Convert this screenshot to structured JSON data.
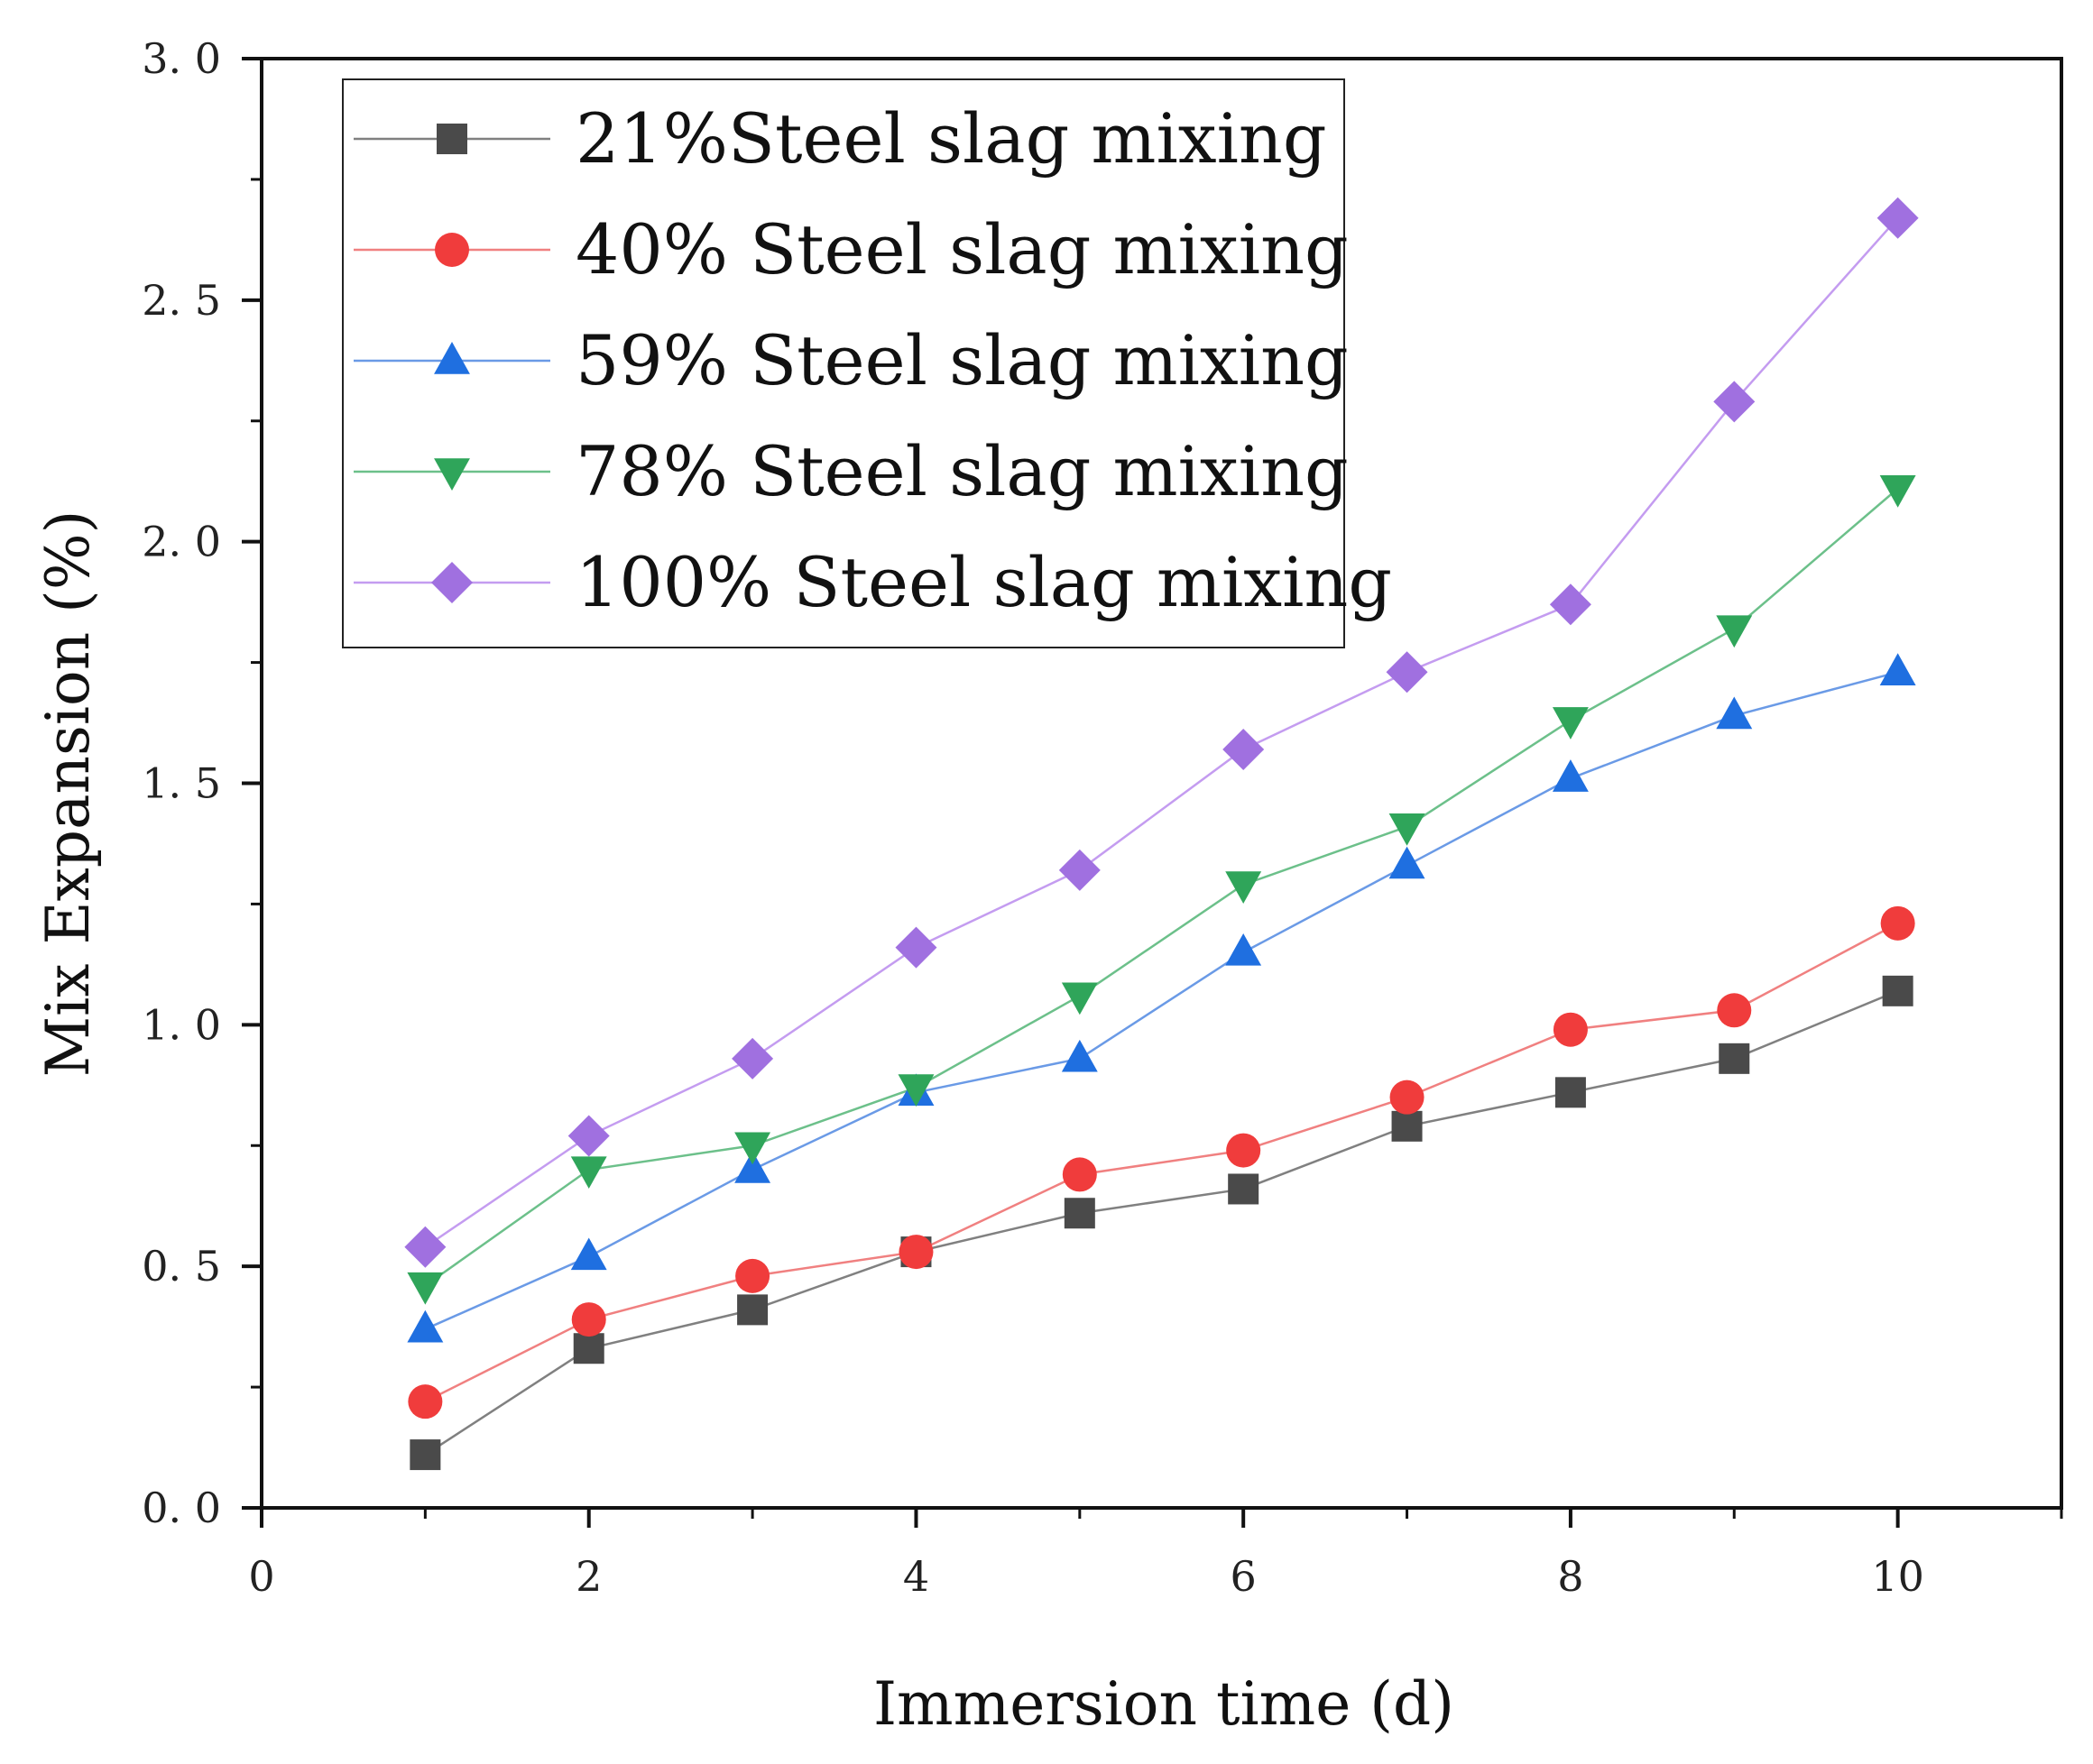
{
  "chart_data": {
    "type": "line",
    "title": "",
    "xlabel": "Immersion time (d)",
    "ylabel": "Mix Expansion (%)",
    "xlim": [
      0,
      11
    ],
    "ylim": [
      0,
      3.0
    ],
    "x_ticks": [
      0,
      2,
      4,
      6,
      8,
      10
    ],
    "x_tick_labels": [
      "0",
      "2",
      "4",
      "6",
      "8",
      "10"
    ],
    "y_ticks": [
      0,
      0.5,
      1.0,
      1.5,
      2.0,
      2.5,
      3.0
    ],
    "y_tick_labels": [
      "0. 0",
      "0. 5",
      "1. 0",
      "1. 5",
      "2. 0",
      "2. 5",
      "3. 0"
    ],
    "grid": false,
    "legend_position": "top-left",
    "x": [
      1,
      2,
      3,
      4,
      5,
      6,
      7,
      8,
      9,
      10
    ],
    "series": [
      {
        "name": "21%Steel slag mixing",
        "marker": "square",
        "line_color": "#808080",
        "marker_color": "#4a4a4a",
        "values": [
          0.11,
          0.33,
          0.41,
          0.53,
          0.61,
          0.66,
          0.79,
          0.86,
          0.93,
          1.07
        ]
      },
      {
        "name": "40% Steel slag mixing",
        "marker": "circle",
        "line_color": "#f08080",
        "marker_color": "#f03c3c",
        "values": [
          0.22,
          0.39,
          0.48,
          0.53,
          0.69,
          0.74,
          0.85,
          0.99,
          1.03,
          1.21
        ]
      },
      {
        "name": "59% Steel slag mixing",
        "marker": "triangle-up",
        "line_color": "#6a9ae6",
        "marker_color": "#1f6fe0",
        "values": [
          0.37,
          0.52,
          0.7,
          0.86,
          0.93,
          1.15,
          1.33,
          1.51,
          1.64,
          1.73
        ]
      },
      {
        "name": "78% Steel slag mixing",
        "marker": "triangle-down",
        "line_color": "#6cc08a",
        "marker_color": "#2fa55a",
        "values": [
          0.46,
          0.7,
          0.75,
          0.87,
          1.06,
          1.29,
          1.41,
          1.63,
          1.82,
          2.11
        ]
      },
      {
        "name": "100% Steel slag mixing",
        "marker": "diamond",
        "line_color": "#c49cf0",
        "marker_color": "#a070e0",
        "values": [
          0.54,
          0.77,
          0.93,
          1.16,
          1.32,
          1.57,
          1.73,
          1.87,
          2.29,
          2.67
        ]
      }
    ]
  }
}
